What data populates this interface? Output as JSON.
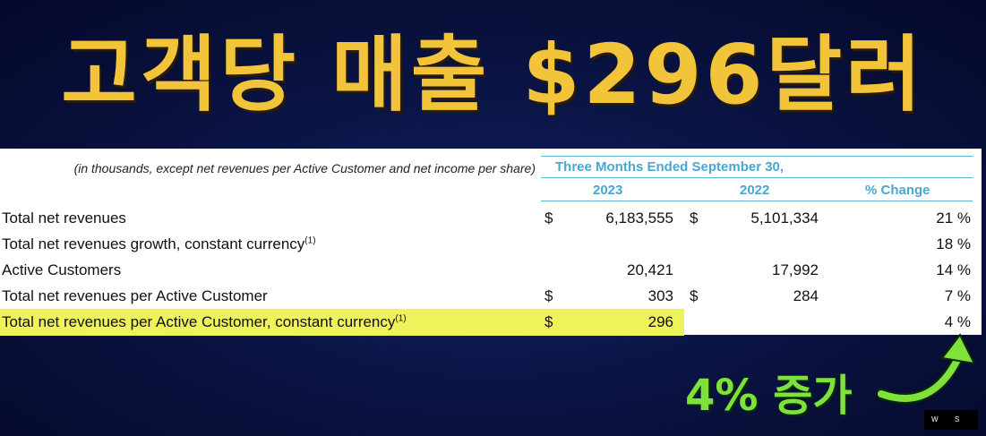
{
  "title": "고객당 매출 $296달러",
  "table": {
    "note": "(in thousands, except net revenues per Active Customer and net income per share)",
    "period": "Three Months Ended September 30,",
    "col_2023": "2023",
    "col_2022": "2022",
    "col_change": "% Change",
    "rows": [
      {
        "label": "Total net revenues",
        "sup": "",
        "cur_2023": "$",
        "v2023": "6,183,555",
        "cur_2022": "$",
        "v2022": "5,101,334",
        "change": "21 %"
      },
      {
        "label": "Total net revenues growth, constant currency",
        "sup": "(1)",
        "cur_2023": "",
        "v2023": "",
        "cur_2022": "",
        "v2022": "",
        "change": "18 %"
      },
      {
        "label": "Active Customers",
        "sup": "",
        "cur_2023": "",
        "v2023": "20,421",
        "cur_2022": "",
        "v2022": "17,992",
        "change": "14 %"
      },
      {
        "label": "Total net revenues per Active Customer",
        "sup": "",
        "cur_2023": "$",
        "v2023": "303",
        "cur_2022": "$",
        "v2022": "284",
        "change": "7 %"
      },
      {
        "label": "Total net revenues per Active Customer, constant currency",
        "sup": "(1)",
        "cur_2023": "$",
        "v2023": "296",
        "cur_2022": "",
        "v2022": "",
        "change": "4 %"
      }
    ]
  },
  "annotation": "4% 증가",
  "watermark": {
    "left": "W",
    "right": "S"
  },
  "colors": {
    "title": "#f2c43a",
    "highlight": "#eef35a",
    "annotation": "#7ee23a",
    "header": "#4aa7cf"
  }
}
